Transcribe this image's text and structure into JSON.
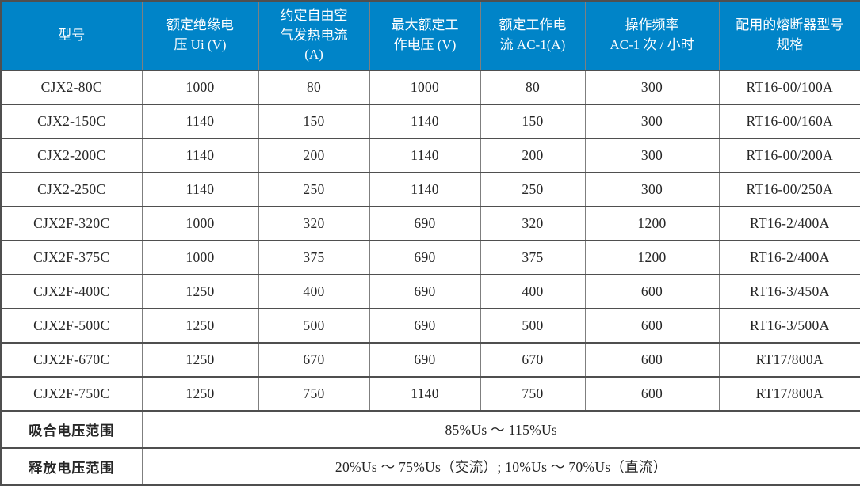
{
  "table": {
    "colors": {
      "header_bg": "#0084c8",
      "header_text": "#ffffff",
      "body_text": "#262626",
      "border_dark": "#4f4f4f",
      "border_light": "#7f7f7f"
    },
    "columns": [
      {
        "label": "型号"
      },
      {
        "label": "额定绝缘电\n压 Ui (V)"
      },
      {
        "label": "约定自由空\n气发热电流\n(A)"
      },
      {
        "label": "最大额定工\n作电压 (V)"
      },
      {
        "label": "额定工作电\n流 AC-1(A)"
      },
      {
        "label": "操作频率\nAC-1 次 / 小时"
      },
      {
        "label": "配用的熔断器型号\n规格"
      }
    ],
    "rows": [
      [
        "CJX2-80C",
        "1000",
        "80",
        "1000",
        "80",
        "300",
        "RT16-00/100A"
      ],
      [
        "CJX2-150C",
        "1140",
        "150",
        "1140",
        "150",
        "300",
        "RT16-00/160A"
      ],
      [
        "CJX2-200C",
        "1140",
        "200",
        "1140",
        "200",
        "300",
        "RT16-00/200A"
      ],
      [
        "CJX2-250C",
        "1140",
        "250",
        "1140",
        "250",
        "300",
        "RT16-00/250A"
      ],
      [
        "CJX2F-320C",
        "1000",
        "320",
        "690",
        "320",
        "1200",
        "RT16-2/400A"
      ],
      [
        "CJX2F-375C",
        "1000",
        "375",
        "690",
        "375",
        "1200",
        "RT16-2/400A"
      ],
      [
        "CJX2F-400C",
        "1250",
        "400",
        "690",
        "400",
        "600",
        "RT16-3/450A"
      ],
      [
        "CJX2F-500C",
        "1250",
        "500",
        "690",
        "500",
        "600",
        "RT16-3/500A"
      ],
      [
        "CJX2F-670C",
        "1250",
        "670",
        "690",
        "670",
        "600",
        "RT17/800A"
      ],
      [
        "CJX2F-750C",
        "1250",
        "750",
        "1140",
        "750",
        "600",
        "RT17/800A"
      ]
    ],
    "footer_rows": [
      {
        "label": "吸合电压范围",
        "value": "85%Us ～ 115%Us"
      },
      {
        "label": "释放电压范围",
        "value": "20%Us ～ 75%Us（交流）; 10%Us ～ 70%Us（直流）"
      }
    ]
  }
}
